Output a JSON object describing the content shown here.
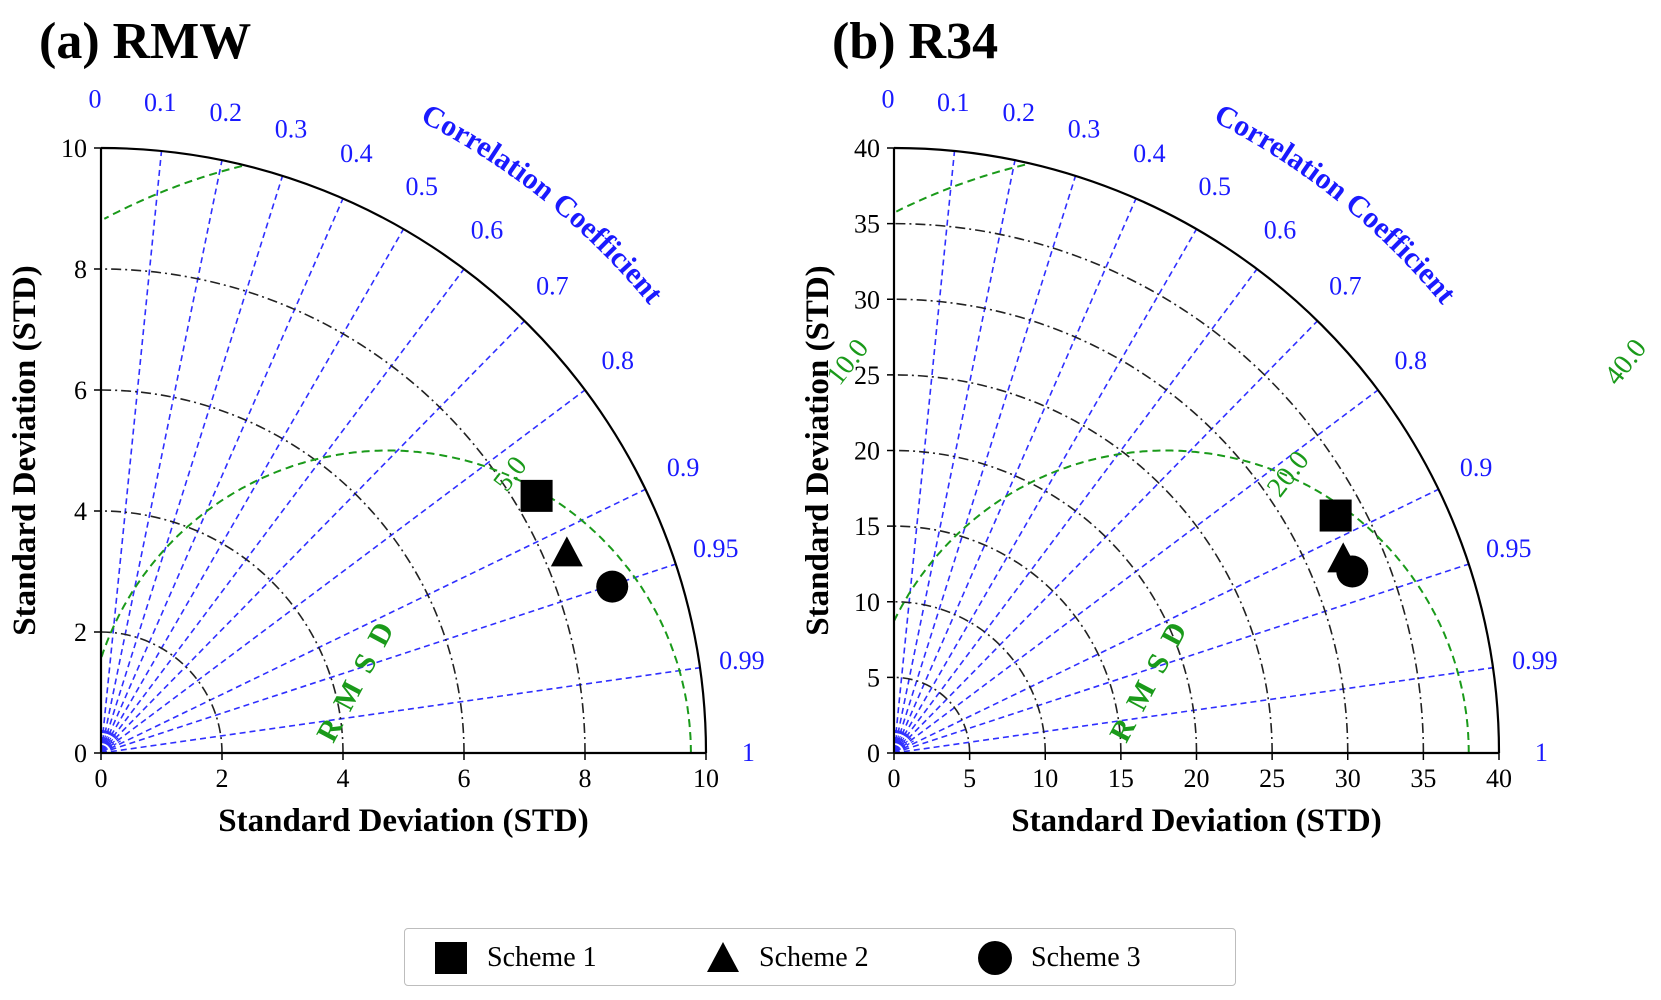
{
  "chart_data": [
    {
      "type": "taylor-diagram",
      "title": "(a) RMW",
      "xlabel": "Standard Deviation (STD)",
      "ylabel": "Standard Deviation (STD)",
      "corr_label": "Correlation Coefficient",
      "rmsd_label": "RMSD",
      "std_max": 10,
      "std_ticks": [
        "0",
        "2",
        "4",
        "6",
        "8",
        "10"
      ],
      "std_arcs": [
        2,
        4,
        6,
        8
      ],
      "corr_ticks": [
        "0",
        "0.1",
        "0.2",
        "0.3",
        "0.4",
        "0.5",
        "0.6",
        "0.7",
        "0.8",
        "0.9",
        "0.95",
        "0.99",
        "1"
      ],
      "ref_std": 4.75,
      "rmsd_contours": [
        {
          "value": 5.0,
          "label": "5.0"
        },
        {
          "value": 10.0,
          "label": "10.0"
        }
      ],
      "points": [
        {
          "name": "Scheme 1",
          "marker": "square",
          "x": 7.2,
          "y": 4.25
        },
        {
          "name": "Scheme 2",
          "marker": "triangle",
          "x": 7.7,
          "y": 3.3
        },
        {
          "name": "Scheme 3",
          "marker": "circle",
          "x": 8.45,
          "y": 2.75
        }
      ]
    },
    {
      "type": "taylor-diagram",
      "title": "(b) R34",
      "xlabel": "Standard Deviation (STD)",
      "ylabel": "Standard Deviation (STD)",
      "corr_label": "Correlation Coefficient",
      "rmsd_label": "RMSD",
      "std_max": 40,
      "std_ticks": [
        "0",
        "5",
        "10",
        "15",
        "20",
        "25",
        "30",
        "35",
        "40"
      ],
      "std_arcs": [
        5,
        10,
        15,
        20,
        25,
        30,
        35
      ],
      "corr_ticks": [
        "0",
        "0.1",
        "0.2",
        "0.3",
        "0.4",
        "0.5",
        "0.6",
        "0.7",
        "0.8",
        "0.9",
        "0.95",
        "0.99",
        "1"
      ],
      "ref_std": 18,
      "rmsd_contours": [
        {
          "value": 20.0,
          "label": "20.0"
        },
        {
          "value": 40.0,
          "label": "40.0"
        }
      ],
      "points": [
        {
          "name": "Scheme 1",
          "marker": "square",
          "x": 29.2,
          "y": 15.7
        },
        {
          "name": "Scheme 2",
          "marker": "triangle",
          "x": 29.7,
          "y": 12.8
        },
        {
          "name": "Scheme 3",
          "marker": "circle",
          "x": 30.3,
          "y": 12.0
        }
      ]
    }
  ],
  "legend": {
    "items": [
      {
        "label": "Scheme 1",
        "marker": "square"
      },
      {
        "label": "Scheme 2",
        "marker": "triangle"
      },
      {
        "label": "Scheme 3",
        "marker": "circle"
      }
    ]
  },
  "colors": {
    "corr_lines": "#2f2fff",
    "corr_text": "#1a1aff",
    "std_arcs": "#222222",
    "rmsd": "#1a9a1a",
    "markers": "#000000"
  }
}
